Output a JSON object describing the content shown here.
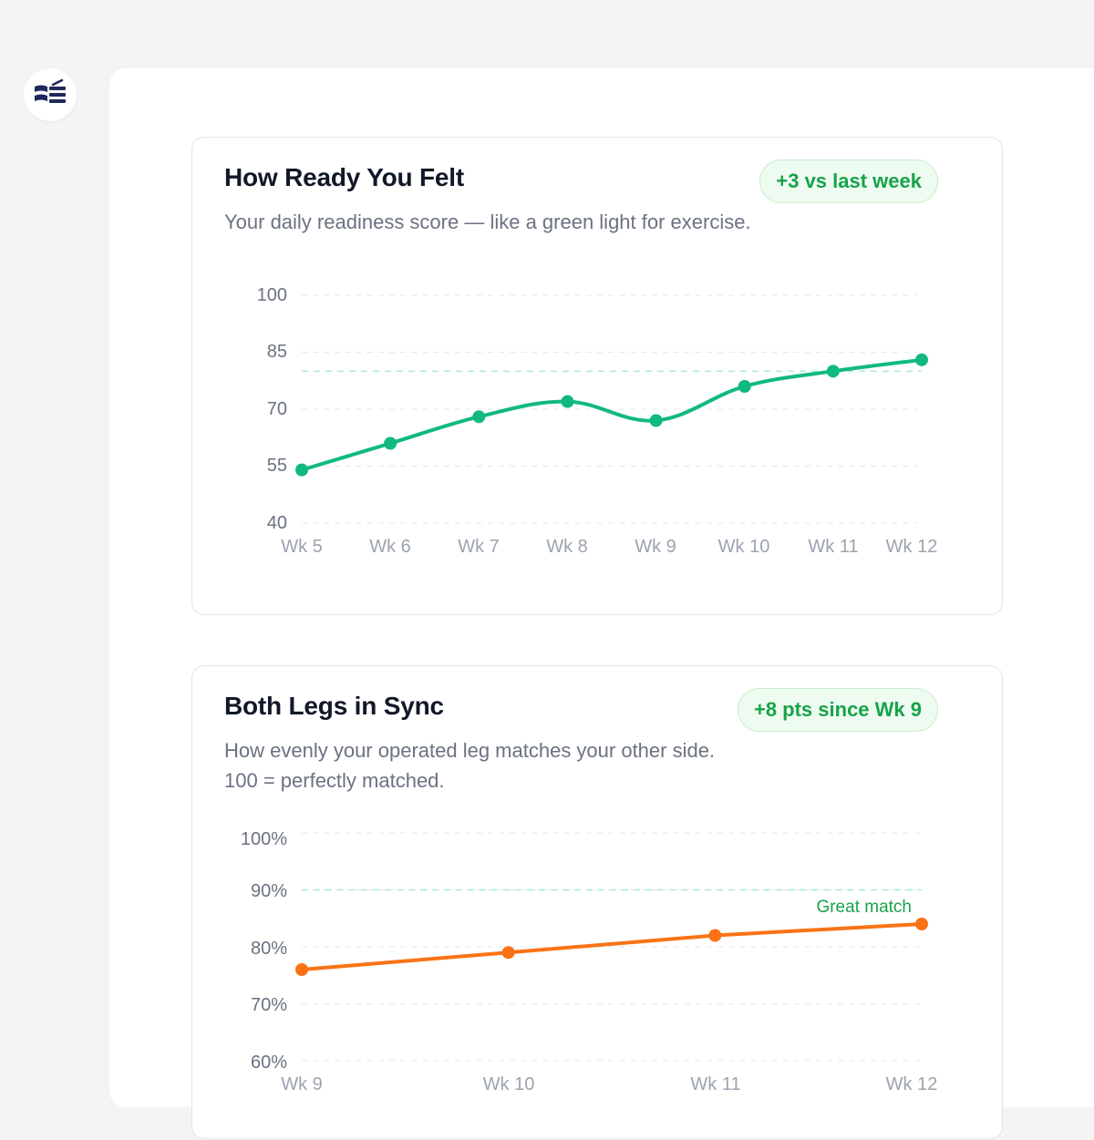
{
  "colors": {
    "accent_green": "#16a34a",
    "line_green": "#10b981",
    "line_orange": "#f97316",
    "logo_navy": "#1e2a5a"
  },
  "logo": {
    "icon": "app-logo-icon"
  },
  "cards": [
    {
      "title": "How Ready You Felt",
      "subtitle": "Your daily readiness score — like a green light for exercise.",
      "badge": "+3 vs last week"
    },
    {
      "title": "Both Legs in Sync",
      "subtitle": "How evenly your operated leg matches your other side. 100 = perfectly matched.",
      "badge": "+8 pts since Wk 9"
    }
  ],
  "chart_data": [
    {
      "type": "line",
      "x": [
        "Wk 5",
        "Wk 6",
        "Wk 7",
        "Wk 8",
        "Wk 9",
        "Wk 10",
        "Wk 11",
        "Wk 12"
      ],
      "series": [
        {
          "values": [
            54,
            61,
            68,
            72,
            67,
            76,
            80,
            83
          ],
          "color": "#10b981"
        }
      ],
      "yticks": [
        "100",
        "85",
        "70",
        "55",
        "40"
      ],
      "ylim": [
        40,
        100
      ],
      "target": 80,
      "smooth": true,
      "grid": true
    },
    {
      "type": "line",
      "x": [
        "Wk 9",
        "Wk 10",
        "Wk 11",
        "Wk 12"
      ],
      "series": [
        {
          "values": [
            76,
            79,
            82,
            84
          ],
          "color": "#f97316"
        }
      ],
      "yticks": [
        "100%",
        "90%",
        "80%",
        "70%",
        "60%"
      ],
      "ylim": [
        60,
        100
      ],
      "target": 90,
      "target_label": "Great match",
      "smooth": false,
      "grid": true
    }
  ]
}
